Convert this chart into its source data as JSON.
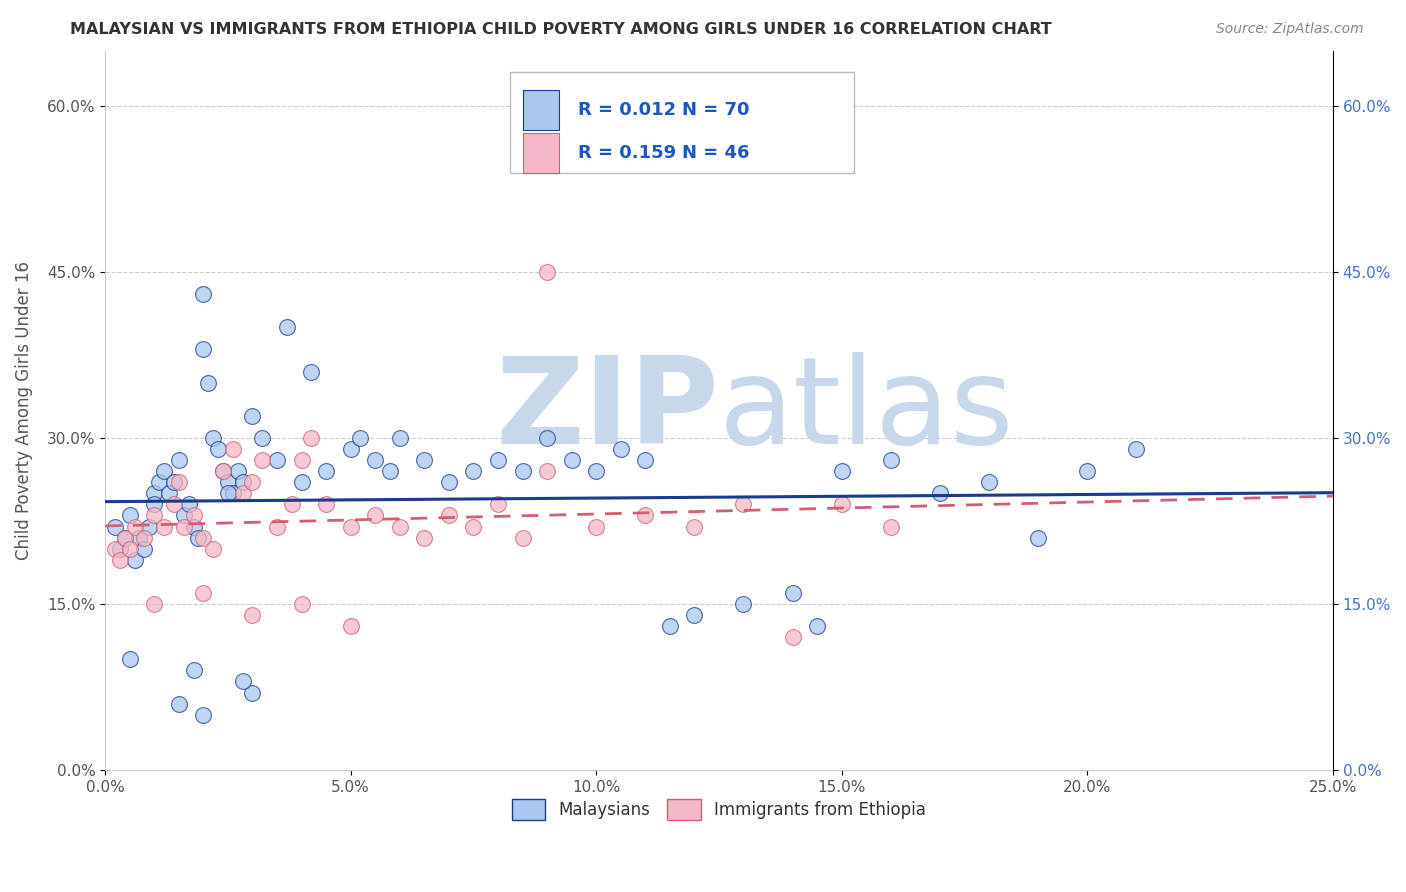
{
  "title": "MALAYSIAN VS IMMIGRANTS FROM ETHIOPIA CHILD POVERTY AMONG GIRLS UNDER 16 CORRELATION CHART",
  "source": "Source: ZipAtlas.com",
  "ylabel": "Child Poverty Among Girls Under 16",
  "xlabel_vals": [
    0.0,
    5.0,
    10.0,
    15.0,
    20.0,
    25.0
  ],
  "ylabel_vals": [
    0.0,
    15.0,
    30.0,
    45.0,
    60.0
  ],
  "xlim": [
    0.0,
    25.0
  ],
  "ylim": [
    0.0,
    65.0
  ],
  "legend_label1": "Malaysians",
  "legend_label2": "Immigrants from Ethiopia",
  "R1": "0.012",
  "N1": "70",
  "R2": "0.159",
  "N2": "46",
  "color_blue": "#A8C8F0",
  "color_pink": "#F5B8C8",
  "line_blue": "#1A3A8C",
  "line_pink": "#D06070",
  "watermark_zip": "ZIP",
  "watermark_atlas": "atlas",
  "watermark_color": "#C8D8EC",
  "blue_scatter_x": [
    0.2,
    0.3,
    0.4,
    0.5,
    0.6,
    0.7,
    0.8,
    0.9,
    1.0,
    1.0,
    1.1,
    1.2,
    1.3,
    1.4,
    1.5,
    1.6,
    1.7,
    1.8,
    1.9,
    2.0,
    2.0,
    2.1,
    2.2,
    2.3,
    2.4,
    2.5,
    2.6,
    2.7,
    2.8,
    3.0,
    3.2,
    3.5,
    3.7,
    4.0,
    4.2,
    4.5,
    5.0,
    5.2,
    5.5,
    5.8,
    6.0,
    6.5,
    7.0,
    7.5,
    8.0,
    8.5,
    9.0,
    9.5,
    10.0,
    10.5,
    11.0,
    11.5,
    12.0,
    13.0,
    14.0,
    14.5,
    15.0,
    16.0,
    17.0,
    18.0,
    19.0,
    20.0,
    21.0,
    3.0,
    2.8,
    1.5,
    2.0,
    1.8,
    0.5,
    2.5
  ],
  "blue_scatter_y": [
    22.0,
    20.0,
    21.0,
    23.0,
    19.0,
    21.0,
    20.0,
    22.0,
    25.0,
    24.0,
    26.0,
    27.0,
    25.0,
    26.0,
    28.0,
    23.0,
    24.0,
    22.0,
    21.0,
    43.0,
    38.0,
    35.0,
    30.0,
    29.0,
    27.0,
    26.0,
    25.0,
    27.0,
    26.0,
    32.0,
    30.0,
    28.0,
    40.0,
    26.0,
    36.0,
    27.0,
    29.0,
    30.0,
    28.0,
    27.0,
    30.0,
    28.0,
    26.0,
    27.0,
    28.0,
    27.0,
    30.0,
    28.0,
    27.0,
    29.0,
    28.0,
    13.0,
    14.0,
    15.0,
    16.0,
    13.0,
    27.0,
    28.0,
    25.0,
    26.0,
    21.0,
    27.0,
    29.0,
    7.0,
    8.0,
    6.0,
    5.0,
    9.0,
    10.0,
    25.0
  ],
  "pink_scatter_x": [
    0.2,
    0.3,
    0.4,
    0.5,
    0.6,
    0.8,
    1.0,
    1.2,
    1.4,
    1.5,
    1.6,
    1.8,
    2.0,
    2.2,
    2.4,
    2.6,
    2.8,
    3.0,
    3.2,
    3.5,
    3.8,
    4.0,
    4.2,
    4.5,
    5.0,
    5.5,
    6.0,
    6.5,
    7.0,
    7.5,
    8.0,
    8.5,
    9.0,
    10.0,
    11.0,
    12.0,
    13.0,
    14.0,
    15.0,
    16.0,
    1.0,
    2.0,
    3.0,
    4.0,
    5.0,
    9.0
  ],
  "pink_scatter_y": [
    20.0,
    19.0,
    21.0,
    20.0,
    22.0,
    21.0,
    23.0,
    22.0,
    24.0,
    26.0,
    22.0,
    23.0,
    21.0,
    20.0,
    27.0,
    29.0,
    25.0,
    26.0,
    28.0,
    22.0,
    24.0,
    28.0,
    30.0,
    24.0,
    22.0,
    23.0,
    22.0,
    21.0,
    23.0,
    22.0,
    24.0,
    21.0,
    45.0,
    22.0,
    23.0,
    22.0,
    24.0,
    12.0,
    24.0,
    22.0,
    15.0,
    16.0,
    14.0,
    15.0,
    13.0,
    27.0
  ]
}
